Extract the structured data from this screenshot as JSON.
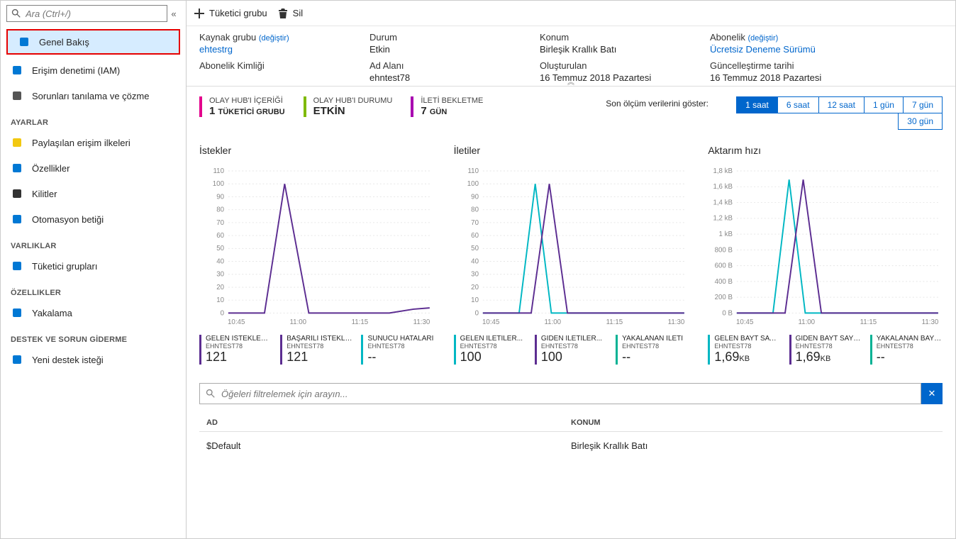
{
  "sidebar": {
    "search_placeholder": "Ara (Ctrl+/)",
    "items": [
      {
        "label": "Genel Bakış",
        "icon": "#0078d4",
        "highlight": true
      },
      {
        "label": "Erişim denetimi (IAM)",
        "icon": "#0078d4"
      },
      {
        "label": "Sorunları tanılama ve çözme",
        "icon": "#555"
      }
    ],
    "sections": [
      {
        "title": "AYARLAR",
        "items": [
          {
            "label": "Paylaşılan erişim ilkeleri",
            "icon": "#f2c811"
          },
          {
            "label": "Özellikler",
            "icon": "#0078d4"
          },
          {
            "label": "Kilitler",
            "icon": "#333"
          },
          {
            "label": "Otomasyon betiği",
            "icon": "#0078d4"
          }
        ]
      },
      {
        "title": "VARLIKLAR",
        "items": [
          {
            "label": "Tüketici grupları",
            "icon": "#0078d4"
          }
        ]
      },
      {
        "title": "ÖZELLIKLER",
        "items": [
          {
            "label": "Yakalama",
            "icon": "#0078d4"
          }
        ]
      },
      {
        "title": "DESTEK VE SORUN GİDERME",
        "items": [
          {
            "label": "Yeni destek isteği",
            "icon": "#0078d4"
          }
        ]
      }
    ]
  },
  "toolbar": {
    "consumer_group": "Tüketici grubu",
    "delete": "Sil"
  },
  "essentials": {
    "resource_group_label": "Kaynak grubu",
    "change": "(değiştir)",
    "resource_group": "ehtestrg",
    "subscription_id_label": "Abonelik Kimliği",
    "status_label": "Durum",
    "status": "Etkin",
    "namespace_label": "Ad Alanı",
    "namespace": "ehntest78",
    "location_label": "Konum",
    "location": "Birleşik Krallık Batı",
    "created_label": "Oluşturulan",
    "created": "16 Temmuz 2018 Pazartesi",
    "subscription_label": "Abonelik",
    "subscription": "Ücretsiz Deneme Sürümü",
    "updated_label": "Güncelleştirme tarihi",
    "updated": "16 Temmuz 2018 Pazartesi"
  },
  "stats": [
    {
      "title": "OLAY HUB'I İÇERİĞİ",
      "value": "1",
      "unit": "TÜKETİCİ GRUBU",
      "color": "#e3008c"
    },
    {
      "title": "OLAY HUB'I DURUMU",
      "value": "ETKİN",
      "unit": "",
      "color": "#7fba00"
    },
    {
      "title": "İLETİ BEKLETME",
      "value": "7",
      "unit": "GÜN",
      "color": "#a800b0"
    }
  ],
  "time_filter": {
    "label": "Son ölçüm verilerini göster:",
    "options": [
      "1 saat",
      "6 saat",
      "12 saat",
      "1 gün",
      "7 gün",
      "30 gün"
    ],
    "active": "1 saat"
  },
  "charts": [
    {
      "title": "İstekler",
      "y_ticks": [
        0,
        10,
        20,
        30,
        40,
        50,
        60,
        70,
        80,
        90,
        100,
        110
      ],
      "ylim": [
        0,
        110
      ],
      "x_ticks": [
        "10:45",
        "11:00",
        "11:15",
        "11:30"
      ],
      "series": [
        {
          "name": "GELEN İSTEKLER...",
          "sub": "EHNTEST78",
          "value": "121",
          "unit": "",
          "color": "#5c2d91",
          "points": [
            [
              0,
              0
            ],
            [
              0.18,
              0
            ],
            [
              0.28,
              100
            ],
            [
              0.4,
              0
            ],
            [
              0.5,
              0
            ],
            [
              0.6,
              0
            ],
            [
              0.7,
              0
            ],
            [
              0.8,
              0
            ],
            [
              0.92,
              3
            ],
            [
              1,
              4
            ]
          ]
        },
        {
          "name": "BAŞARILI İSTEKLER",
          "sub": "EHNTEST78",
          "value": "121",
          "unit": "",
          "color": "#5c2d91",
          "points": []
        },
        {
          "name": "SUNUCU HATALARI",
          "sub": "EHNTEST78",
          "value": "--",
          "unit": "",
          "color": "#00b7c3",
          "points": []
        }
      ]
    },
    {
      "title": "İletiler",
      "y_ticks": [
        0,
        10,
        20,
        30,
        40,
        50,
        60,
        70,
        80,
        90,
        100,
        110
      ],
      "ylim": [
        0,
        110
      ],
      "x_ticks": [
        "10:45",
        "11:00",
        "11:15",
        "11:30"
      ],
      "series": [
        {
          "name": "GELEN İLETİLER...",
          "sub": "EHNTEST78",
          "value": "100",
          "unit": "",
          "color": "#00b7c3",
          "points": [
            [
              0,
              0
            ],
            [
              0.18,
              0
            ],
            [
              0.26,
              100
            ],
            [
              0.34,
              0
            ],
            [
              1,
              0
            ]
          ]
        },
        {
          "name": "GİDEN İLETİLER...",
          "sub": "EHNTEST78",
          "value": "100",
          "unit": "",
          "color": "#5c2d91",
          "points": [
            [
              0,
              0
            ],
            [
              0.24,
              0
            ],
            [
              0.33,
              100
            ],
            [
              0.42,
              0
            ],
            [
              1,
              0
            ]
          ]
        },
        {
          "name": "YAKALANAN İLETİ",
          "sub": "EHNTEST78",
          "value": "--",
          "unit": "",
          "color": "#00b294",
          "points": []
        }
      ]
    },
    {
      "title": "Aktarım hızı",
      "y_ticks": [
        "0 B",
        "200 B",
        "400 B",
        "600 B",
        "800 B",
        "1 kB",
        "1,2 kB",
        "1,4 kB",
        "1,6 kB",
        "1,8 kB"
      ],
      "ylim": [
        0,
        1800
      ],
      "x_ticks": [
        "10:45",
        "11:00",
        "11:15",
        "11:30"
      ],
      "series": [
        {
          "name": "GELEN BAYT SAYISI (...",
          "sub": "EHNTEST78",
          "value": "1,69",
          "unit": "KB",
          "color": "#00b7c3",
          "points": [
            [
              0,
              0
            ],
            [
              0.18,
              0
            ],
            [
              0.26,
              1690
            ],
            [
              0.34,
              0
            ],
            [
              1,
              0
            ]
          ]
        },
        {
          "name": "GİDEN BAYT SAYISI (...",
          "sub": "EHNTEST78",
          "value": "1,69",
          "unit": "KB",
          "color": "#5c2d91",
          "points": [
            [
              0,
              0
            ],
            [
              0.24,
              0
            ],
            [
              0.33,
              1690
            ],
            [
              0.42,
              0
            ],
            [
              1,
              0
            ]
          ]
        },
        {
          "name": "YAKALANAN BAYTLAR",
          "sub": "EHNTEST78",
          "value": "--",
          "unit": "",
          "color": "#00b294",
          "points": []
        }
      ]
    }
  ],
  "filter": {
    "placeholder": "Öğeleri filtrelemek için arayın..."
  },
  "table": {
    "headers": [
      "AD",
      "KONUM"
    ],
    "rows": [
      [
        "$Default",
        "Birleşik Krallık Batı"
      ]
    ]
  },
  "colors": {
    "grid": "#e6e6e6",
    "axis_text": "#888",
    "link": "#0066cc"
  }
}
